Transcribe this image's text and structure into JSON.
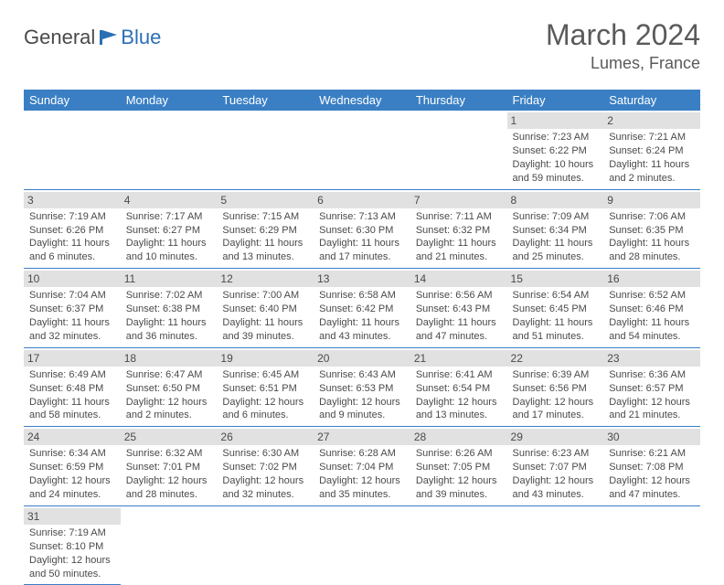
{
  "brand": {
    "part1": "General",
    "part2": "Blue"
  },
  "title": "March 2024",
  "location": "Lumes, France",
  "colors": {
    "header_bg": "#3a7fc4",
    "header_text": "#ffffff",
    "daynum_bg": "#e1e1e1",
    "text": "#4a4a4a",
    "brand_blue": "#2a6fb5"
  },
  "weekdays": [
    "Sunday",
    "Monday",
    "Tuesday",
    "Wednesday",
    "Thursday",
    "Friday",
    "Saturday"
  ],
  "weeks": [
    [
      null,
      null,
      null,
      null,
      null,
      {
        "n": "1",
        "sr": "Sunrise: 7:23 AM",
        "ss": "Sunset: 6:22 PM",
        "dl": "Daylight: 10 hours and 59 minutes."
      },
      {
        "n": "2",
        "sr": "Sunrise: 7:21 AM",
        "ss": "Sunset: 6:24 PM",
        "dl": "Daylight: 11 hours and 2 minutes."
      }
    ],
    [
      {
        "n": "3",
        "sr": "Sunrise: 7:19 AM",
        "ss": "Sunset: 6:26 PM",
        "dl": "Daylight: 11 hours and 6 minutes."
      },
      {
        "n": "4",
        "sr": "Sunrise: 7:17 AM",
        "ss": "Sunset: 6:27 PM",
        "dl": "Daylight: 11 hours and 10 minutes."
      },
      {
        "n": "5",
        "sr": "Sunrise: 7:15 AM",
        "ss": "Sunset: 6:29 PM",
        "dl": "Daylight: 11 hours and 13 minutes."
      },
      {
        "n": "6",
        "sr": "Sunrise: 7:13 AM",
        "ss": "Sunset: 6:30 PM",
        "dl": "Daylight: 11 hours and 17 minutes."
      },
      {
        "n": "7",
        "sr": "Sunrise: 7:11 AM",
        "ss": "Sunset: 6:32 PM",
        "dl": "Daylight: 11 hours and 21 minutes."
      },
      {
        "n": "8",
        "sr": "Sunrise: 7:09 AM",
        "ss": "Sunset: 6:34 PM",
        "dl": "Daylight: 11 hours and 25 minutes."
      },
      {
        "n": "9",
        "sr": "Sunrise: 7:06 AM",
        "ss": "Sunset: 6:35 PM",
        "dl": "Daylight: 11 hours and 28 minutes."
      }
    ],
    [
      {
        "n": "10",
        "sr": "Sunrise: 7:04 AM",
        "ss": "Sunset: 6:37 PM",
        "dl": "Daylight: 11 hours and 32 minutes."
      },
      {
        "n": "11",
        "sr": "Sunrise: 7:02 AM",
        "ss": "Sunset: 6:38 PM",
        "dl": "Daylight: 11 hours and 36 minutes."
      },
      {
        "n": "12",
        "sr": "Sunrise: 7:00 AM",
        "ss": "Sunset: 6:40 PM",
        "dl": "Daylight: 11 hours and 39 minutes."
      },
      {
        "n": "13",
        "sr": "Sunrise: 6:58 AM",
        "ss": "Sunset: 6:42 PM",
        "dl": "Daylight: 11 hours and 43 minutes."
      },
      {
        "n": "14",
        "sr": "Sunrise: 6:56 AM",
        "ss": "Sunset: 6:43 PM",
        "dl": "Daylight: 11 hours and 47 minutes."
      },
      {
        "n": "15",
        "sr": "Sunrise: 6:54 AM",
        "ss": "Sunset: 6:45 PM",
        "dl": "Daylight: 11 hours and 51 minutes."
      },
      {
        "n": "16",
        "sr": "Sunrise: 6:52 AM",
        "ss": "Sunset: 6:46 PM",
        "dl": "Daylight: 11 hours and 54 minutes."
      }
    ],
    [
      {
        "n": "17",
        "sr": "Sunrise: 6:49 AM",
        "ss": "Sunset: 6:48 PM",
        "dl": "Daylight: 11 hours and 58 minutes."
      },
      {
        "n": "18",
        "sr": "Sunrise: 6:47 AM",
        "ss": "Sunset: 6:50 PM",
        "dl": "Daylight: 12 hours and 2 minutes."
      },
      {
        "n": "19",
        "sr": "Sunrise: 6:45 AM",
        "ss": "Sunset: 6:51 PM",
        "dl": "Daylight: 12 hours and 6 minutes."
      },
      {
        "n": "20",
        "sr": "Sunrise: 6:43 AM",
        "ss": "Sunset: 6:53 PM",
        "dl": "Daylight: 12 hours and 9 minutes."
      },
      {
        "n": "21",
        "sr": "Sunrise: 6:41 AM",
        "ss": "Sunset: 6:54 PM",
        "dl": "Daylight: 12 hours and 13 minutes."
      },
      {
        "n": "22",
        "sr": "Sunrise: 6:39 AM",
        "ss": "Sunset: 6:56 PM",
        "dl": "Daylight: 12 hours and 17 minutes."
      },
      {
        "n": "23",
        "sr": "Sunrise: 6:36 AM",
        "ss": "Sunset: 6:57 PM",
        "dl": "Daylight: 12 hours and 21 minutes."
      }
    ],
    [
      {
        "n": "24",
        "sr": "Sunrise: 6:34 AM",
        "ss": "Sunset: 6:59 PM",
        "dl": "Daylight: 12 hours and 24 minutes."
      },
      {
        "n": "25",
        "sr": "Sunrise: 6:32 AM",
        "ss": "Sunset: 7:01 PM",
        "dl": "Daylight: 12 hours and 28 minutes."
      },
      {
        "n": "26",
        "sr": "Sunrise: 6:30 AM",
        "ss": "Sunset: 7:02 PM",
        "dl": "Daylight: 12 hours and 32 minutes."
      },
      {
        "n": "27",
        "sr": "Sunrise: 6:28 AM",
        "ss": "Sunset: 7:04 PM",
        "dl": "Daylight: 12 hours and 35 minutes."
      },
      {
        "n": "28",
        "sr": "Sunrise: 6:26 AM",
        "ss": "Sunset: 7:05 PM",
        "dl": "Daylight: 12 hours and 39 minutes."
      },
      {
        "n": "29",
        "sr": "Sunrise: 6:23 AM",
        "ss": "Sunset: 7:07 PM",
        "dl": "Daylight: 12 hours and 43 minutes."
      },
      {
        "n": "30",
        "sr": "Sunrise: 6:21 AM",
        "ss": "Sunset: 7:08 PM",
        "dl": "Daylight: 12 hours and 47 minutes."
      }
    ],
    [
      {
        "n": "31",
        "sr": "Sunrise: 7:19 AM",
        "ss": "Sunset: 8:10 PM",
        "dl": "Daylight: 12 hours and 50 minutes."
      },
      null,
      null,
      null,
      null,
      null,
      null
    ]
  ]
}
